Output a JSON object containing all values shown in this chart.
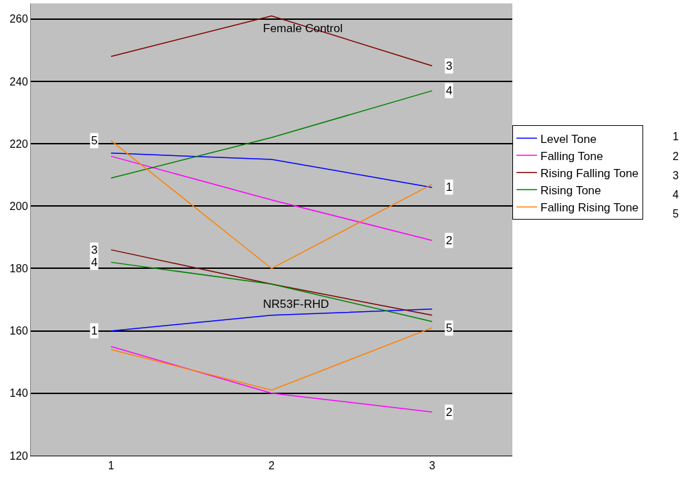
{
  "chart_data": {
    "type": "line",
    "categories": [
      "1",
      "2",
      "3"
    ],
    "series": [
      {
        "name": "Level Tone",
        "color": "#0000ff",
        "values": [
          217,
          215,
          206
        ]
      },
      {
        "name": "Falling Tone",
        "color": "#ff00ff",
        "values": [
          216,
          202,
          189
        ]
      },
      {
        "name": "Rising Falling Tone",
        "color": "#800000",
        "values": [
          248,
          261,
          245
        ]
      },
      {
        "name": "Rising Tone",
        "color": "#008000",
        "values": [
          209,
          222,
          237
        ]
      },
      {
        "name": "Falling Rising Tone",
        "color": "#ff8000",
        "values": [
          221,
          180,
          207
        ]
      },
      {
        "color": "#0000ff",
        "values": [
          160,
          165,
          167
        ]
      },
      {
        "color": "#ff00ff",
        "values": [
          155,
          140,
          134
        ]
      },
      {
        "color": "#800000",
        "values": [
          186,
          175,
          165
        ]
      },
      {
        "color": "#008000",
        "values": [
          182,
          175,
          163
        ]
      },
      {
        "color": "#ff8000",
        "values": [
          154,
          141,
          161
        ]
      }
    ],
    "ylim": [
      120,
      265
    ],
    "yticks": [
      120,
      140,
      160,
      180,
      200,
      220,
      240,
      260
    ],
    "grid": "y",
    "legend": "right",
    "marker": "none",
    "line_style": "solid",
    "annotations": [
      "Female Control",
      "NR53F-RHD",
      {
        "text": "3",
        "x": "3",
        "y": 245
      },
      {
        "text": "4",
        "x": "3",
        "y": 237
      },
      {
        "text": "5",
        "x": "1",
        "y": 221
      },
      {
        "text": "1",
        "x": "3",
        "y": 206
      },
      {
        "text": "2",
        "x": "3",
        "y": 189
      },
      {
        "text": "3",
        "x": "1",
        "y": 186
      },
      {
        "text": "4",
        "x": "1",
        "y": 182
      },
      {
        "text": "1",
        "x": "1",
        "y": 160
      },
      {
        "text": "5",
        "x": "3",
        "y": 161
      },
      {
        "text": "2",
        "x": "3",
        "y": 134
      },
      "1",
      "2",
      "3",
      "4",
      "5"
    ]
  }
}
